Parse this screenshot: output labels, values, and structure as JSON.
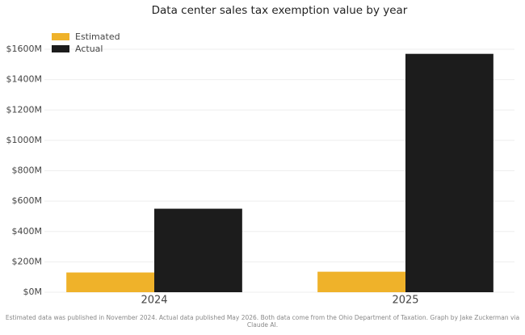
{
  "chart_data": {
    "type": "bar",
    "title": "Data center sales tax exemption value by year",
    "categories": [
      "2024",
      "2025"
    ],
    "series": [
      {
        "name": "Estimated",
        "color": "#efb22a",
        "values": [
          130,
          135
        ]
      },
      {
        "name": "Actual",
        "color": "#1c1c1c",
        "values": [
          550,
          1570
        ]
      }
    ],
    "ylim": [
      0,
      1680
    ],
    "yticks": [
      {
        "value": 0,
        "label": "$0M"
      },
      {
        "value": 200,
        "label": "$200M"
      },
      {
        "value": 400,
        "label": "$400M"
      },
      {
        "value": 600,
        "label": "$600M"
      },
      {
        "value": 800,
        "label": "$800M"
      },
      {
        "value": 1000,
        "label": "$1000M"
      },
      {
        "value": 1200,
        "label": "$1200M"
      },
      {
        "value": 1400,
        "label": "$1400M"
      },
      {
        "value": 1600,
        "label": "$1600M"
      }
    ],
    "grid": true,
    "legend": "top-left",
    "footnote": "Estimated data was published in November 2024. Actual data published May 2026. Both data come from the Ohio Department of Taxation. Graph by Jake Zuckerman via Claude AI."
  }
}
